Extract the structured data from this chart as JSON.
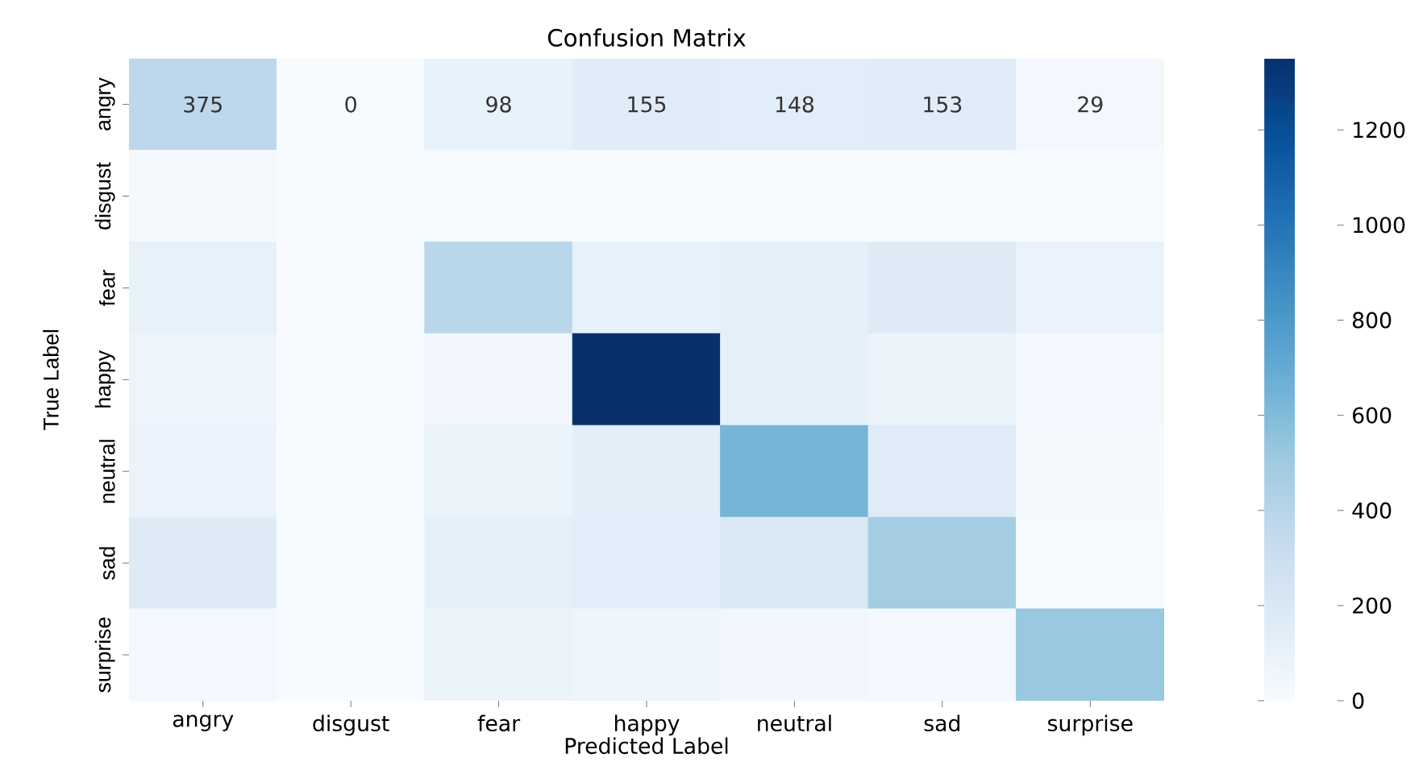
{
  "chart_data": {
    "type": "heatmap",
    "title": "Confusion Matrix",
    "xlabel": "Predicted Label",
    "ylabel": "True Label",
    "categories": [
      "angry",
      "disgust",
      "fear",
      "happy",
      "neutral",
      "sad",
      "surprise"
    ],
    "y_categories": [
      "angry",
      "disgust",
      "fear",
      "happy",
      "neutral",
      "sad",
      "surprise"
    ],
    "cells": [
      [
        375,
        0,
        98,
        155,
        148,
        153,
        29
      ],
      [
        20,
        5,
        15,
        10,
        10,
        15,
        3
      ],
      [
        110,
        3,
        390,
        110,
        120,
        170,
        90
      ],
      [
        70,
        1,
        40,
        1350,
        120,
        80,
        30
      ],
      [
        90,
        2,
        80,
        140,
        640,
        160,
        20
      ],
      [
        170,
        3,
        130,
        150,
        200,
        480,
        15
      ],
      [
        30,
        1,
        80,
        60,
        40,
        25,
        520
      ]
    ],
    "cell_labels": [
      [
        "375",
        "0",
        "98",
        "155",
        "148",
        "153",
        "29"
      ],
      [
        null,
        null,
        null,
        null,
        null,
        null,
        null
      ],
      [
        null,
        null,
        null,
        null,
        null,
        null,
        null
      ],
      [
        null,
        null,
        null,
        null,
        null,
        null,
        null
      ],
      [
        null,
        null,
        null,
        null,
        null,
        null,
        null
      ],
      [
        null,
        null,
        null,
        null,
        null,
        null,
        null
      ],
      [
        null,
        null,
        null,
        null,
        null,
        null,
        null
      ]
    ],
    "clim": [
      0,
      1350
    ],
    "cticks": [
      0,
      200,
      400,
      600,
      800,
      1000,
      1200
    ]
  }
}
